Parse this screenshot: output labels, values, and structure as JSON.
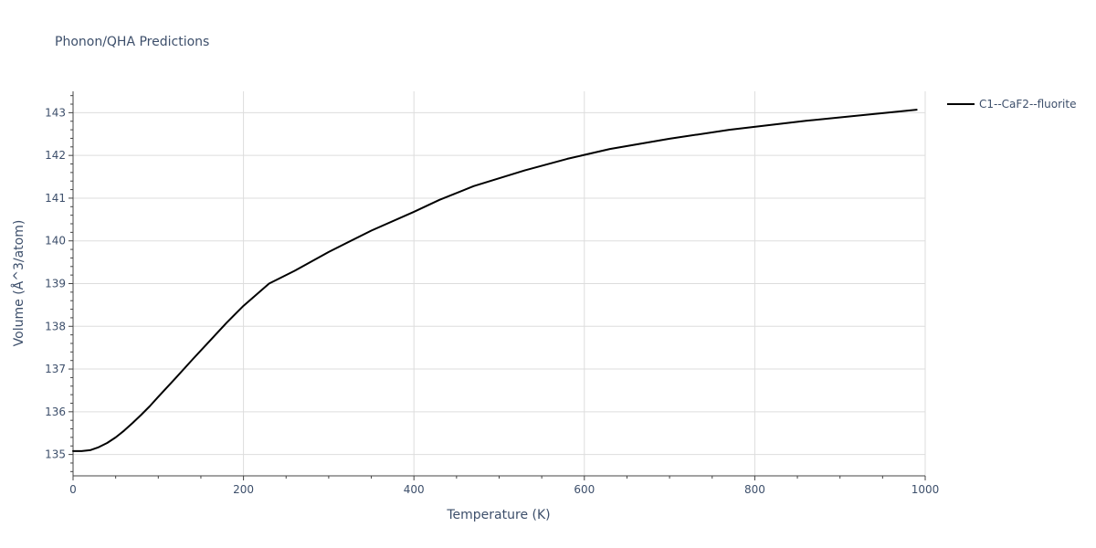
{
  "chart_data": {
    "type": "line",
    "title": "Phonon/QHA Predictions",
    "xlabel": "Temperature (K)",
    "ylabel": "Volume (Å^3/atom)",
    "xlim": [
      0,
      1000
    ],
    "ylim": [
      134.5,
      143.5
    ],
    "x_ticks": [
      0,
      200,
      400,
      600,
      800,
      1000
    ],
    "y_ticks": [
      135,
      136,
      137,
      138,
      139,
      140,
      141,
      142,
      143
    ],
    "grid": true,
    "legend_position": "top-right",
    "series": [
      {
        "name": "C1--CaF2--fluorite",
        "color": "#000000",
        "x": [
          0,
          10,
          20,
          30,
          40,
          50,
          60,
          70,
          80,
          90,
          100,
          120,
          140,
          160,
          180,
          200,
          230,
          260,
          300,
          350,
          400,
          430,
          470,
          530,
          580,
          630,
          700,
          770,
          860,
          950,
          990
        ],
        "y": [
          135.08,
          135.08,
          135.1,
          135.17,
          135.27,
          135.4,
          135.56,
          135.74,
          135.93,
          136.13,
          136.35,
          136.78,
          137.22,
          137.65,
          138.08,
          138.48,
          139.0,
          139.3,
          139.74,
          140.24,
          140.68,
          140.96,
          141.28,
          141.65,
          141.92,
          142.15,
          142.39,
          142.6,
          142.81,
          142.99,
          143.07
        ]
      }
    ]
  }
}
